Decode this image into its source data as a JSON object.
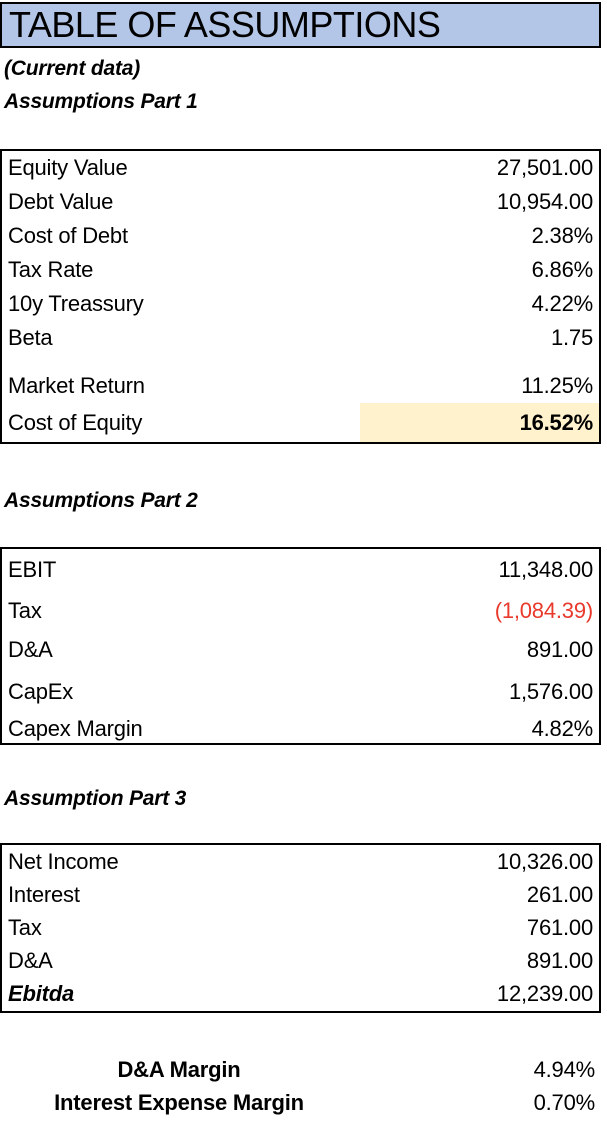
{
  "header": {
    "title": "TABLE OF ASSUMPTIONS",
    "note": "(Current data)"
  },
  "colors": {
    "title_bg": "#b4c6e7",
    "highlight_bg": "#fff2cc",
    "negative_text": "#e8392b"
  },
  "sections": [
    {
      "heading": "Assumptions Part 1",
      "rows": [
        {
          "label": "Equity Value",
          "value": "27,501.00"
        },
        {
          "label": "Debt Value",
          "value": "10,954.00"
        },
        {
          "label": "Cost of Debt",
          "value": "2.38%"
        },
        {
          "label": "Tax Rate",
          "value": "6.86%"
        },
        {
          "label": "10y Treassury",
          "value": "4.22%"
        },
        {
          "label": "Beta",
          "value": "1.75"
        },
        {
          "spacer": true
        },
        {
          "label": "Market Return",
          "value": "11.25%"
        },
        {
          "label": "Cost of Equity",
          "value": "16.52%",
          "highlight": true,
          "bold": true
        }
      ]
    },
    {
      "heading": "Assumptions Part 2",
      "rows": [
        {
          "label": "EBIT",
          "value": "11,348.00"
        },
        {
          "label": "Tax",
          "value": "(1,084.39)",
          "negative": true
        },
        {
          "label": "D&A",
          "value": "891.00"
        },
        {
          "label": "CapEx",
          "value": "1,576.00"
        },
        {
          "label": "Capex Margin",
          "value": "4.82%"
        }
      ]
    },
    {
      "heading": "Assumption Part 3",
      "rows": [
        {
          "label": "Net Income",
          "value": "10,326.00"
        },
        {
          "label": "Interest",
          "value": "261.00"
        },
        {
          "label": "Tax",
          "value": "761.00"
        },
        {
          "label": "D&A",
          "value": "891.00"
        },
        {
          "label": "Ebitda",
          "value": "12,239.00",
          "label_bold_italic": true
        }
      ]
    }
  ],
  "footer": {
    "rows": [
      {
        "label": "D&A Margin",
        "value": "4.94%"
      },
      {
        "label": "Interest Expense Margin",
        "value": "0.70%"
      }
    ]
  }
}
